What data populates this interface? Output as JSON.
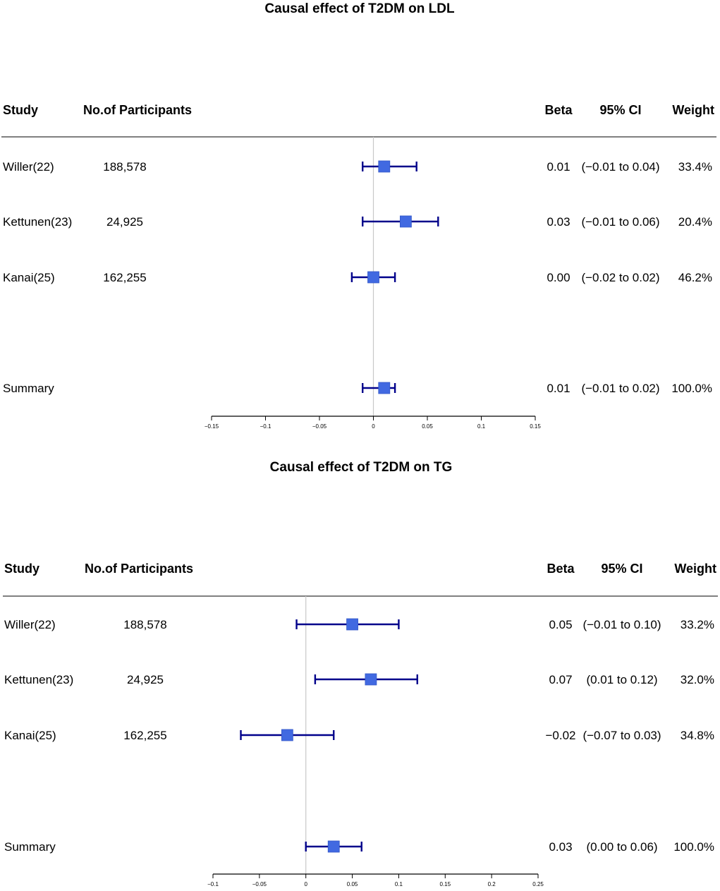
{
  "colors": {
    "marker": "#4169e1",
    "whisker": "#00008b",
    "zero_line": "#c8c8c8",
    "axis": "#000000"
  },
  "chart_data": [
    {
      "type": "forest",
      "title": "Causal effect of T2DM on LDL",
      "columns": {
        "study": "Study",
        "participants": "No.of Participants",
        "beta": "Beta",
        "ci": "95% CI",
        "weight": "Weight"
      },
      "xlim": [
        -0.15,
        0.15
      ],
      "ticks": [
        -0.15,
        -0.1,
        -0.05,
        0,
        0.05,
        0.1,
        0.15
      ],
      "tick_labels": [
        "−0.15",
        "−0.1",
        "−0.05",
        "0",
        "0.05",
        "0.1",
        "0.15"
      ],
      "rows": [
        {
          "study": "Willer(22)",
          "participants": "188,578",
          "beta": 0.01,
          "lower": -0.01,
          "upper": 0.04,
          "beta_text": "0.01",
          "ci_text": "(−0.01 to 0.04)",
          "weight_text": "33.4%"
        },
        {
          "study": "Kettunen(23)",
          "participants": "24,925",
          "beta": 0.03,
          "lower": -0.01,
          "upper": 0.06,
          "beta_text": "0.03",
          "ci_text": "(−0.01 to 0.06)",
          "weight_text": "20.4%"
        },
        {
          "study": "Kanai(25)",
          "participants": "162,255",
          "beta": 0.0,
          "lower": -0.02,
          "upper": 0.02,
          "beta_text": "0.00",
          "ci_text": "(−0.02 to 0.02)",
          "weight_text": "46.2%"
        },
        {
          "study": "Summary",
          "participants": "",
          "beta": 0.01,
          "lower": -0.01,
          "upper": 0.02,
          "beta_text": "0.01",
          "ci_text": "(−0.01 to 0.02)",
          "weight_text": "100.0%",
          "summary": true
        }
      ]
    },
    {
      "type": "forest",
      "title": "Causal effect of T2DM on TG",
      "columns": {
        "study": "Study",
        "participants": "No.of Participants",
        "beta": "Beta",
        "ci": "95% CI",
        "weight": "Weight"
      },
      "xlim": [
        -0.1,
        0.25
      ],
      "ticks": [
        -0.1,
        -0.05,
        0,
        0.05,
        0.1,
        0.15,
        0.2,
        0.25
      ],
      "tick_labels": [
        "−0.1",
        "−0.05",
        "0",
        "0.05",
        "0.1",
        "0.15",
        "0.2",
        "0.25"
      ],
      "rows": [
        {
          "study": "Willer(22)",
          "participants": "188,578",
          "beta": 0.05,
          "lower": -0.01,
          "upper": 0.1,
          "beta_text": "0.05",
          "ci_text": "(−0.01 to 0.10)",
          "weight_text": "33.2%"
        },
        {
          "study": "Kettunen(23)",
          "participants": "24,925",
          "beta": 0.07,
          "lower": 0.01,
          "upper": 0.12,
          "beta_text": "0.07",
          "ci_text": "(0.01 to 0.12)",
          "weight_text": "32.0%"
        },
        {
          "study": "Kanai(25)",
          "participants": "162,255",
          "beta": -0.02,
          "lower": -0.07,
          "upper": 0.03,
          "beta_text": "−0.02",
          "ci_text": "(−0.07 to 0.03)",
          "weight_text": "34.8%"
        },
        {
          "study": "Summary",
          "participants": "",
          "beta": 0.03,
          "lower": 0.0,
          "upper": 0.06,
          "beta_text": "0.03",
          "ci_text": "(0.00 to 0.06)",
          "weight_text": "100.0%",
          "summary": true
        }
      ]
    }
  ]
}
